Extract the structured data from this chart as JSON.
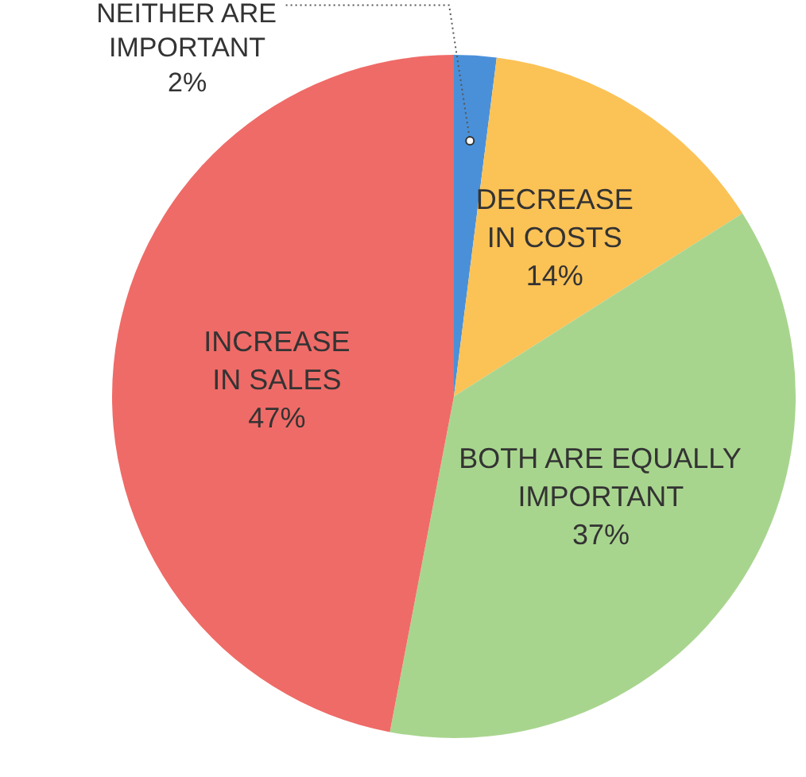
{
  "chart_data": {
    "type": "pie",
    "categories": [
      "NEITHER ARE\nIMPORTANT",
      "DECREASE\nIN COSTS",
      "BOTH ARE EQUALLY\nIMPORTANT",
      "INCREASE\nIN SALES"
    ],
    "values": [
      2,
      14,
      37,
      47
    ],
    "colors": [
      "#4a90d9",
      "#fbc256",
      "#a8d58e",
      "#ef6b67"
    ],
    "value_labels": [
      "2%",
      "14%",
      "37%",
      "47%"
    ]
  }
}
